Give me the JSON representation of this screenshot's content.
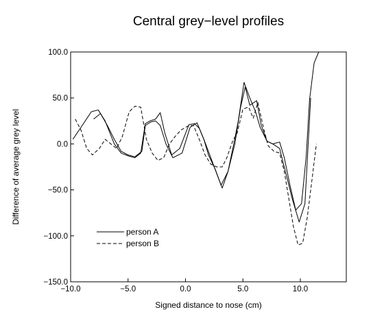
{
  "chart_data": {
    "type": "line",
    "title": "Central grey−level profiles",
    "xlabel": "Signed distance to nose (cm)",
    "ylabel": "Difference of average grey level",
    "xlim": [
      -10.0,
      14.0
    ],
    "ylim": [
      -150.0,
      100.0
    ],
    "xticks": [
      -10.0,
      -5.0,
      0.0,
      5.0,
      10.0
    ],
    "xtick_labels": [
      "−10.0",
      "−5.0",
      "0.0",
      "5.0",
      "10.0"
    ],
    "yticks": [
      -150.0,
      -100.0,
      -50.0,
      0.0,
      50.0,
      100.0
    ],
    "ytick_labels": [
      "−150.0",
      "−100.0",
      "−50.0",
      "0.0",
      "50.0",
      "100.0"
    ],
    "grid": false,
    "legend_position": "lower-left",
    "series": [
      {
        "name": "person A",
        "style": "solid",
        "x": [
          -9.8,
          -9.0,
          -8.2,
          -7.6,
          -7.0,
          -6.2,
          -5.6,
          -5.0,
          -4.4,
          -3.9,
          -3.5,
          -3.1,
          -2.6,
          -2.2,
          -1.8,
          -1.2,
          -0.5,
          0.3,
          0.8,
          1.2,
          1.6,
          2.0,
          2.6,
          3.1,
          3.7,
          4.2,
          4.6,
          5.1,
          5.6,
          6.1,
          6.5,
          7.1,
          7.6,
          8.2,
          8.6,
          9.1,
          9.6,
          10.1,
          10.5,
          10.8,
          11.2,
          11.6
        ],
        "values": [
          5,
          20,
          35,
          37,
          25,
          0,
          -10,
          -13,
          -15,
          -10,
          22,
          25,
          27,
          34,
          12,
          -12,
          -5,
          21,
          22,
          17,
          5,
          -12,
          -28,
          -45,
          -30,
          0,
          25,
          67,
          50,
          35,
          18,
          3,
          0,
          2,
          -15,
          -45,
          -72,
          -65,
          -15,
          48,
          88,
          100
        ]
      },
      {
        "name": "",
        "style": "solid",
        "x": [
          -8.0,
          -7.4,
          -6.8,
          -6.2,
          -5.6,
          -5.0,
          -4.4,
          -3.8,
          -3.5,
          -3.0,
          -2.6,
          -2.2,
          -1.7,
          -1.1,
          -0.3,
          0.4,
          1.0,
          1.6,
          2.2,
          2.8,
          3.2,
          3.7,
          4.3,
          4.8,
          5.2,
          5.6,
          6.2,
          6.6,
          7.1,
          7.6,
          8.2,
          8.7,
          9.3,
          9.9,
          10.4,
          10.9
        ],
        "values": [
          27,
          33,
          20,
          5,
          -8,
          -12,
          -14,
          -8,
          20,
          24,
          25,
          20,
          0,
          -15,
          -10,
          18,
          23,
          5,
          -15,
          -35,
          -48,
          -30,
          0,
          40,
          62,
          42,
          47,
          20,
          3,
          0,
          -5,
          -30,
          -60,
          -85,
          -65,
          50
        ]
      },
      {
        "name": "person B",
        "style": "dashed",
        "x": [
          -9.6,
          -9.1,
          -8.6,
          -8.1,
          -7.5,
          -7.0,
          -6.5,
          -6.0,
          -5.5,
          -4.9,
          -4.4,
          -3.9,
          -3.4,
          -2.9,
          -2.4,
          -1.9,
          -1.4,
          -0.9,
          -0.4,
          0.3,
          0.7,
          1.2,
          1.7,
          2.2,
          2.7,
          3.2,
          3.6,
          4.1,
          4.5,
          5.0,
          5.5,
          5.9,
          6.3,
          6.8,
          7.2,
          7.7,
          8.2,
          8.6,
          9.0,
          9.4,
          9.8,
          10.2,
          10.6,
          11.0,
          11.4
        ],
        "values": [
          27,
          15,
          -5,
          -12,
          -5,
          5,
          0,
          -5,
          8,
          35,
          41,
          40,
          5,
          -10,
          -18,
          -15,
          0,
          8,
          15,
          20,
          20,
          5,
          -12,
          -22,
          -25,
          -25,
          -15,
          3,
          12,
          38,
          40,
          28,
          45,
          17,
          -2,
          -8,
          -10,
          -30,
          -60,
          -90,
          -110,
          -108,
          -80,
          -40,
          0
        ]
      }
    ]
  }
}
